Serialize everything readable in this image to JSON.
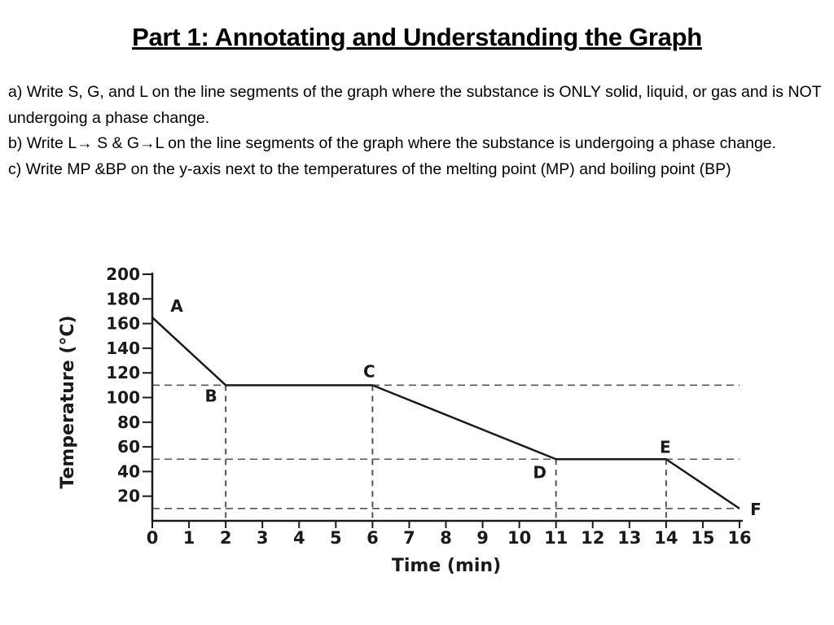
{
  "page": {
    "title": "Part 1: Annotating and Understanding the Graph",
    "instructions": [
      "a) Write S, G, and L on the line segments of the graph where the substance is ONLY solid, liquid, or gas and is NOT undergoing a phase change.",
      "b) Write L→ S   &    G→L on the line segments of the graph where the substance is undergoing a phase change.",
      "c) Write MP &BP on the y-axis next to the temperatures of the melting point (MP) and boiling point (BP)"
    ]
  },
  "chart_data": {
    "type": "line",
    "title": "",
    "xlabel": "Time (min)",
    "ylabel": "Temperature (°C)",
    "xlim": [
      0,
      16
    ],
    "ylim": [
      0,
      200
    ],
    "x_ticks": [
      0,
      1,
      2,
      3,
      4,
      5,
      6,
      7,
      8,
      9,
      10,
      11,
      12,
      13,
      14,
      15,
      16
    ],
    "y_ticks": [
      20,
      40,
      60,
      80,
      100,
      120,
      140,
      160,
      180,
      200
    ],
    "grid": false,
    "series": [
      {
        "x": [
          0,
          2,
          6,
          11,
          14,
          16
        ],
        "y": [
          165,
          110,
          110,
          50,
          50,
          10
        ]
      }
    ],
    "point_labels": [
      {
        "label": "A",
        "x": 0,
        "y": 165
      },
      {
        "label": "B",
        "x": 2,
        "y": 110
      },
      {
        "label": "C",
        "x": 6,
        "y": 110
      },
      {
        "label": "D",
        "x": 11,
        "y": 50
      },
      {
        "label": "E",
        "x": 14,
        "y": 50
      },
      {
        "label": "F",
        "x": 16,
        "y": 10
      }
    ],
    "reference_lines": {
      "horizontal_y": [
        110,
        50,
        10
      ],
      "vertical_x": [
        2,
        6,
        11,
        14
      ]
    },
    "colors": {
      "line": "#1a1a1a",
      "dashed": "#555555"
    }
  }
}
